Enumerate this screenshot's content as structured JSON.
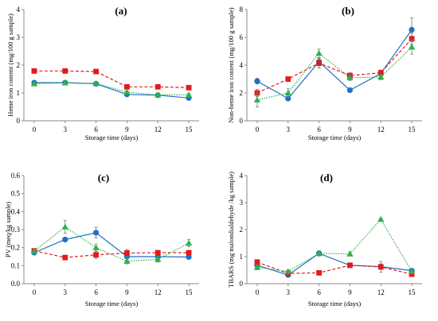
{
  "chart_data": [
    {
      "type": "line",
      "title": "(a)",
      "xlabel": "Storage time (days)",
      "ylabel": "Heme iron content (mg/100 g sample)",
      "x": [
        0,
        3,
        6,
        9,
        12,
        15
      ],
      "xlim": [
        -1,
        16
      ],
      "ylim": [
        0,
        4
      ],
      "yticks": [
        0,
        1,
        2,
        3,
        4
      ],
      "ytick_decimals": 0,
      "series": [
        {
          "color": "#1f6fc4",
          "marker": "circle",
          "line": "solid",
          "values": [
            1.37,
            1.37,
            1.33,
            0.95,
            0.92,
            0.82
          ],
          "err": [
            0.05,
            0.04,
            0.05,
            0.06,
            0.05,
            0.07
          ]
        },
        {
          "color": "#e31a1c",
          "marker": "square",
          "line": "dashed",
          "values": [
            1.79,
            1.79,
            1.77,
            1.22,
            1.22,
            1.19
          ],
          "err": [
            0.04,
            0.03,
            0.04,
            0.05,
            0.04,
            0.04
          ]
        },
        {
          "color": "#2db34a",
          "marker": "triangle",
          "line": "dotted",
          "values": [
            1.33,
            1.36,
            1.34,
            1.03,
            0.93,
            0.93
          ],
          "err": [
            0.04,
            0.04,
            0.04,
            0.05,
            0.05,
            0.05
          ]
        }
      ]
    },
    {
      "type": "line",
      "title": "(b)",
      "xlabel": "Storage time (days)",
      "ylabel": "Non-heme iron content (mg/100 g sample)",
      "x": [
        0,
        3,
        6,
        9,
        12,
        15
      ],
      "xlim": [
        -1,
        16
      ],
      "ylim": [
        0,
        8
      ],
      "yticks": [
        0,
        2,
        4,
        6,
        8
      ],
      "ytick_decimals": 0,
      "series": [
        {
          "color": "#1f6fc4",
          "marker": "circle",
          "line": "solid",
          "values": [
            2.85,
            1.6,
            4.25,
            2.2,
            3.4,
            6.55
          ],
          "err": [
            0.2,
            0.15,
            0.3,
            0.1,
            0.2,
            0.85
          ]
        },
        {
          "color": "#e31a1c",
          "marker": "square",
          "line": "dashed",
          "values": [
            2.0,
            3.0,
            4.15,
            3.25,
            3.45,
            5.9
          ],
          "err": [
            0.25,
            0.15,
            0.35,
            0.2,
            0.2,
            0.4
          ]
        },
        {
          "color": "#2db34a",
          "marker": "triangle",
          "line": "dotted",
          "values": [
            1.5,
            2.0,
            4.85,
            3.1,
            3.15,
            5.3
          ],
          "err": [
            0.5,
            0.3,
            0.3,
            0.2,
            0.2,
            0.5
          ]
        }
      ]
    },
    {
      "type": "line",
      "title": "(c)",
      "xlabel": "Storage time (days)",
      "ylabel": "PV (meq/kg sample)",
      "x": [
        0,
        3,
        6,
        9,
        12,
        15
      ],
      "xlim": [
        -1,
        16
      ],
      "ylim": [
        0,
        0.6
      ],
      "yticks": [
        0,
        0.1,
        0.2,
        0.3,
        0.4,
        0.5,
        0.6
      ],
      "ytick_decimals": 1,
      "series": [
        {
          "color": "#1f6fc4",
          "marker": "circle",
          "line": "solid",
          "values": [
            0.172,
            0.245,
            0.283,
            0.15,
            0.15,
            0.148
          ],
          "err": [
            0.01,
            0.01,
            0.03,
            0.01,
            0.01,
            0.01
          ]
        },
        {
          "color": "#e31a1c",
          "marker": "square",
          "line": "dashed",
          "values": [
            0.182,
            0.145,
            0.16,
            0.17,
            0.172,
            0.172
          ],
          "err": [
            0.01,
            0.01,
            0.02,
            0.02,
            0.01,
            0.01
          ]
        },
        {
          "color": "#2db34a",
          "marker": "triangle",
          "line": "dotted",
          "values": [
            0.18,
            0.315,
            0.2,
            0.125,
            0.135,
            0.225
          ],
          "err": [
            0.01,
            0.035,
            0.02,
            0.015,
            0.015,
            0.02
          ]
        }
      ]
    },
    {
      "type": "line",
      "title": "(d)",
      "xlabel": "Storage time (days)",
      "ylabel": "TBARS (mg malondialdehyde /kg sample)",
      "x": [
        0,
        3,
        6,
        9,
        12,
        15
      ],
      "xlim": [
        -1,
        16
      ],
      "ylim": [
        0,
        4
      ],
      "yticks": [
        0,
        1,
        2,
        3,
        4
      ],
      "ytick_decimals": 0,
      "series": [
        {
          "color": "#1f6fc4",
          "marker": "circle",
          "line": "solid",
          "values": [
            0.68,
            0.32,
            1.12,
            0.68,
            0.63,
            0.48
          ],
          "err": [
            0.08,
            0.05,
            0.08,
            0.05,
            0.1,
            0.05
          ]
        },
        {
          "color": "#e31a1c",
          "marker": "square",
          "line": "dashed",
          "values": [
            0.8,
            0.38,
            0.4,
            0.68,
            0.62,
            0.35
          ],
          "err": [
            0.08,
            0.05,
            0.05,
            0.05,
            0.2,
            0.05
          ]
        },
        {
          "color": "#2db34a",
          "marker": "triangle",
          "line": "dotted",
          "values": [
            0.6,
            0.45,
            1.12,
            1.1,
            2.38,
            0.45
          ],
          "err": [
            0.08,
            0.05,
            0.1,
            0.08,
            0.05,
            0.05
          ]
        }
      ]
    }
  ]
}
